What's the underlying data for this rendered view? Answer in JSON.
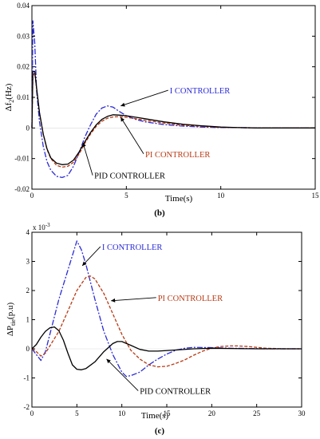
{
  "chart_data": [
    {
      "type": "line",
      "panel_label": "(b)",
      "xlabel": "Time(s)",
      "ylabel_main": "Δf",
      "ylabel_sub": "2",
      "ylabel_unit": "(Hz)",
      "xlim": [
        0,
        15
      ],
      "ylim": [
        -0.02,
        0.04
      ],
      "xticks": [
        0,
        5,
        10,
        15
      ],
      "yticks": [
        -0.02,
        -0.01,
        0,
        0.01,
        0.02,
        0.03,
        0.04
      ],
      "ytick_labels": [
        "-0.02",
        "-0.01",
        "0",
        "0.01",
        "0.02",
        "0.03",
        "0.04"
      ],
      "series": [
        {
          "name": "I CONTROLLER",
          "color": "#2b2bd6",
          "dash": "7,2,2,2",
          "x": [
            0,
            0.05,
            0.15,
            0.25,
            0.4,
            0.6,
            0.8,
            1.0,
            1.3,
            1.6,
            1.9,
            2.2,
            2.5,
            2.8,
            3.1,
            3.4,
            3.7,
            4.0,
            4.3,
            4.6,
            5.0,
            5.5,
            6.0,
            7.0,
            8.0,
            9.0,
            10,
            11,
            12,
            13,
            14,
            15
          ],
          "y": [
            0,
            0.035,
            0.028,
            0.012,
            0.002,
            -0.006,
            -0.011,
            -0.0138,
            -0.0158,
            -0.0162,
            -0.0155,
            -0.0125,
            -0.008,
            -0.003,
            0.001,
            0.0045,
            0.0065,
            0.0072,
            0.0068,
            0.0055,
            0.004,
            0.0028,
            0.002,
            0.0011,
            0.0006,
            0.0003,
            0.0001,
            0.0001,
            0,
            0,
            0,
            0
          ]
        },
        {
          "name": "PI CONTROLLER",
          "color": "#b83a14",
          "dash": "4,2",
          "x": [
            0,
            0.05,
            0.15,
            0.25,
            0.4,
            0.6,
            0.8,
            1.0,
            1.3,
            1.6,
            1.9,
            2.2,
            2.5,
            2.8,
            3.1,
            3.4,
            3.7,
            4.0,
            4.3,
            4.6,
            5.0,
            5.5,
            6.0,
            7.0,
            8.0,
            9.0,
            10,
            11,
            12,
            13,
            14,
            15
          ],
          "y": [
            0,
            0.017,
            0.018,
            0.013,
            0.005,
            -0.002,
            -0.007,
            -0.01,
            -0.0122,
            -0.0128,
            -0.0125,
            -0.0112,
            -0.0085,
            -0.005,
            -0.002,
            0.0005,
            0.0022,
            0.0032,
            0.0036,
            0.0037,
            0.0035,
            0.003,
            0.0025,
            0.0016,
            0.0009,
            0.0005,
            0.0002,
            0.0001,
            0,
            0,
            0,
            0
          ]
        },
        {
          "name": "PID CONTROLLER",
          "color": "#000000",
          "dash": "",
          "x": [
            0,
            0.05,
            0.15,
            0.25,
            0.4,
            0.6,
            0.8,
            1.0,
            1.3,
            1.6,
            1.9,
            2.2,
            2.5,
            2.8,
            3.1,
            3.4,
            3.7,
            4.0,
            4.3,
            4.6,
            5.0,
            5.5,
            6.0,
            7.0,
            8.0,
            9.0,
            10,
            11,
            12,
            13,
            14,
            15
          ],
          "y": [
            0,
            0.0185,
            0.0185,
            0.013,
            0.005,
            -0.002,
            -0.0068,
            -0.0098,
            -0.0115,
            -0.012,
            -0.0118,
            -0.0105,
            -0.0078,
            -0.0045,
            -0.0015,
            0.001,
            0.0028,
            0.0038,
            0.0043,
            0.0042,
            0.004,
            0.0035,
            0.003,
            0.002,
            0.0012,
            0.0007,
            0.0003,
            0.0001,
            0,
            0,
            0,
            0
          ]
        }
      ],
      "annotations": [
        {
          "text": "I CONTROLLER",
          "color": "#2b2bd6",
          "tx": 7.3,
          "ty": 0.0113,
          "ax": 4.7,
          "ay": 0.0072
        },
        {
          "text": "PI CONTROLLER",
          "color": "#b83a14",
          "tx": 6.0,
          "ty": -0.0095,
          "ax": 4.7,
          "ay": 0.0035
        },
        {
          "text": "PID CONTROLLER",
          "color": "#000000",
          "tx": 3.3,
          "ty": -0.0165,
          "ax": 2.7,
          "ay": -0.0048
        }
      ]
    },
    {
      "type": "line",
      "panel_label": "(c)",
      "xlabel": "Time(s)",
      "ylabel_main": "ΔP",
      "ylabel_sub": "tie",
      "ylabel_unit": "(p.u)",
      "exponent_label": "x 10",
      "exponent": "-3",
      "xlim": [
        0,
        30
      ],
      "ylim": [
        -2,
        4
      ],
      "xticks": [
        0,
        5,
        10,
        15,
        20,
        25,
        30
      ],
      "yticks": [
        -2,
        -1,
        0,
        1,
        2,
        3,
        4
      ],
      "ytick_labels": [
        "-2",
        "-1",
        "0",
        "1",
        "2",
        "3",
        "4"
      ],
      "series": [
        {
          "name": "I CONTROLLER",
          "color": "#2b2bd6",
          "dash": "7,2,2,2",
          "x": [
            0,
            0.5,
            1,
            1.5,
            2,
            3,
            4,
            4.5,
            5,
            5.5,
            6,
            7,
            8,
            9,
            10,
            10.5,
            11,
            12,
            13,
            14,
            15,
            16,
            17,
            18,
            20,
            22,
            24,
            26,
            28,
            30
          ],
          "y": [
            0,
            -0.2,
            -0.4,
            -0.1,
            0.5,
            1.7,
            2.7,
            3.2,
            3.7,
            3.4,
            2.9,
            1.7,
            0.6,
            -0.2,
            -0.8,
            -0.95,
            -0.92,
            -0.8,
            -0.55,
            -0.35,
            -0.18,
            -0.05,
            0.02,
            0.05,
            0.04,
            0.02,
            0.01,
            0,
            0,
            0
          ]
        },
        {
          "name": "PI CONTROLLER",
          "color": "#b83a14",
          "dash": "4,2",
          "x": [
            0,
            0.5,
            1,
            1.5,
            2,
            3,
            4,
            5,
            6,
            6.5,
            7,
            8,
            9,
            10,
            11,
            12,
            13,
            14,
            15,
            16,
            17,
            18,
            19,
            20,
            21,
            22,
            23,
            24,
            25,
            26,
            28,
            30
          ],
          "y": [
            0,
            -0.1,
            -0.25,
            -0.15,
            0.1,
            0.6,
            1.3,
            2.0,
            2.45,
            2.5,
            2.4,
            1.9,
            1.2,
            0.5,
            -0.05,
            -0.35,
            -0.55,
            -0.62,
            -0.6,
            -0.5,
            -0.38,
            -0.22,
            -0.08,
            0.02,
            0.08,
            0.1,
            0.1,
            0.08,
            0.05,
            0.02,
            0,
            0
          ]
        },
        {
          "name": "PID CONTROLLER",
          "color": "#000000",
          "dash": "",
          "x": [
            0,
            0.5,
            1,
            1.5,
            2,
            2.5,
            3,
            3.5,
            4,
            4.5,
            5,
            5.5,
            6,
            7,
            8,
            9,
            9.5,
            10,
            11,
            12,
            13,
            14,
            16,
            18,
            20,
            22,
            25,
            30
          ],
          "y": [
            0,
            0.15,
            0.4,
            0.6,
            0.72,
            0.75,
            0.62,
            0.3,
            -0.15,
            -0.55,
            -0.7,
            -0.72,
            -0.68,
            -0.45,
            -0.1,
            0.18,
            0.25,
            0.25,
            0.12,
            -0.02,
            -0.08,
            -0.08,
            -0.04,
            0,
            0.02,
            0.01,
            0,
            0
          ]
        }
      ],
      "annotations": [
        {
          "text": "I CONTROLLER",
          "color": "#2b2bd6",
          "tx": 7.8,
          "ty": 3.4,
          "ax": 5.6,
          "ay": 2.85
        },
        {
          "text": "PI CONTROLLER",
          "color": "#b83a14",
          "tx": 14.0,
          "ty": 1.65,
          "ax": 8.8,
          "ay": 1.65
        },
        {
          "text": "PID CONTROLLER",
          "color": "#000000",
          "tx": 12.0,
          "ty": -1.55,
          "ax": 8.3,
          "ay": -0.35
        }
      ]
    }
  ]
}
